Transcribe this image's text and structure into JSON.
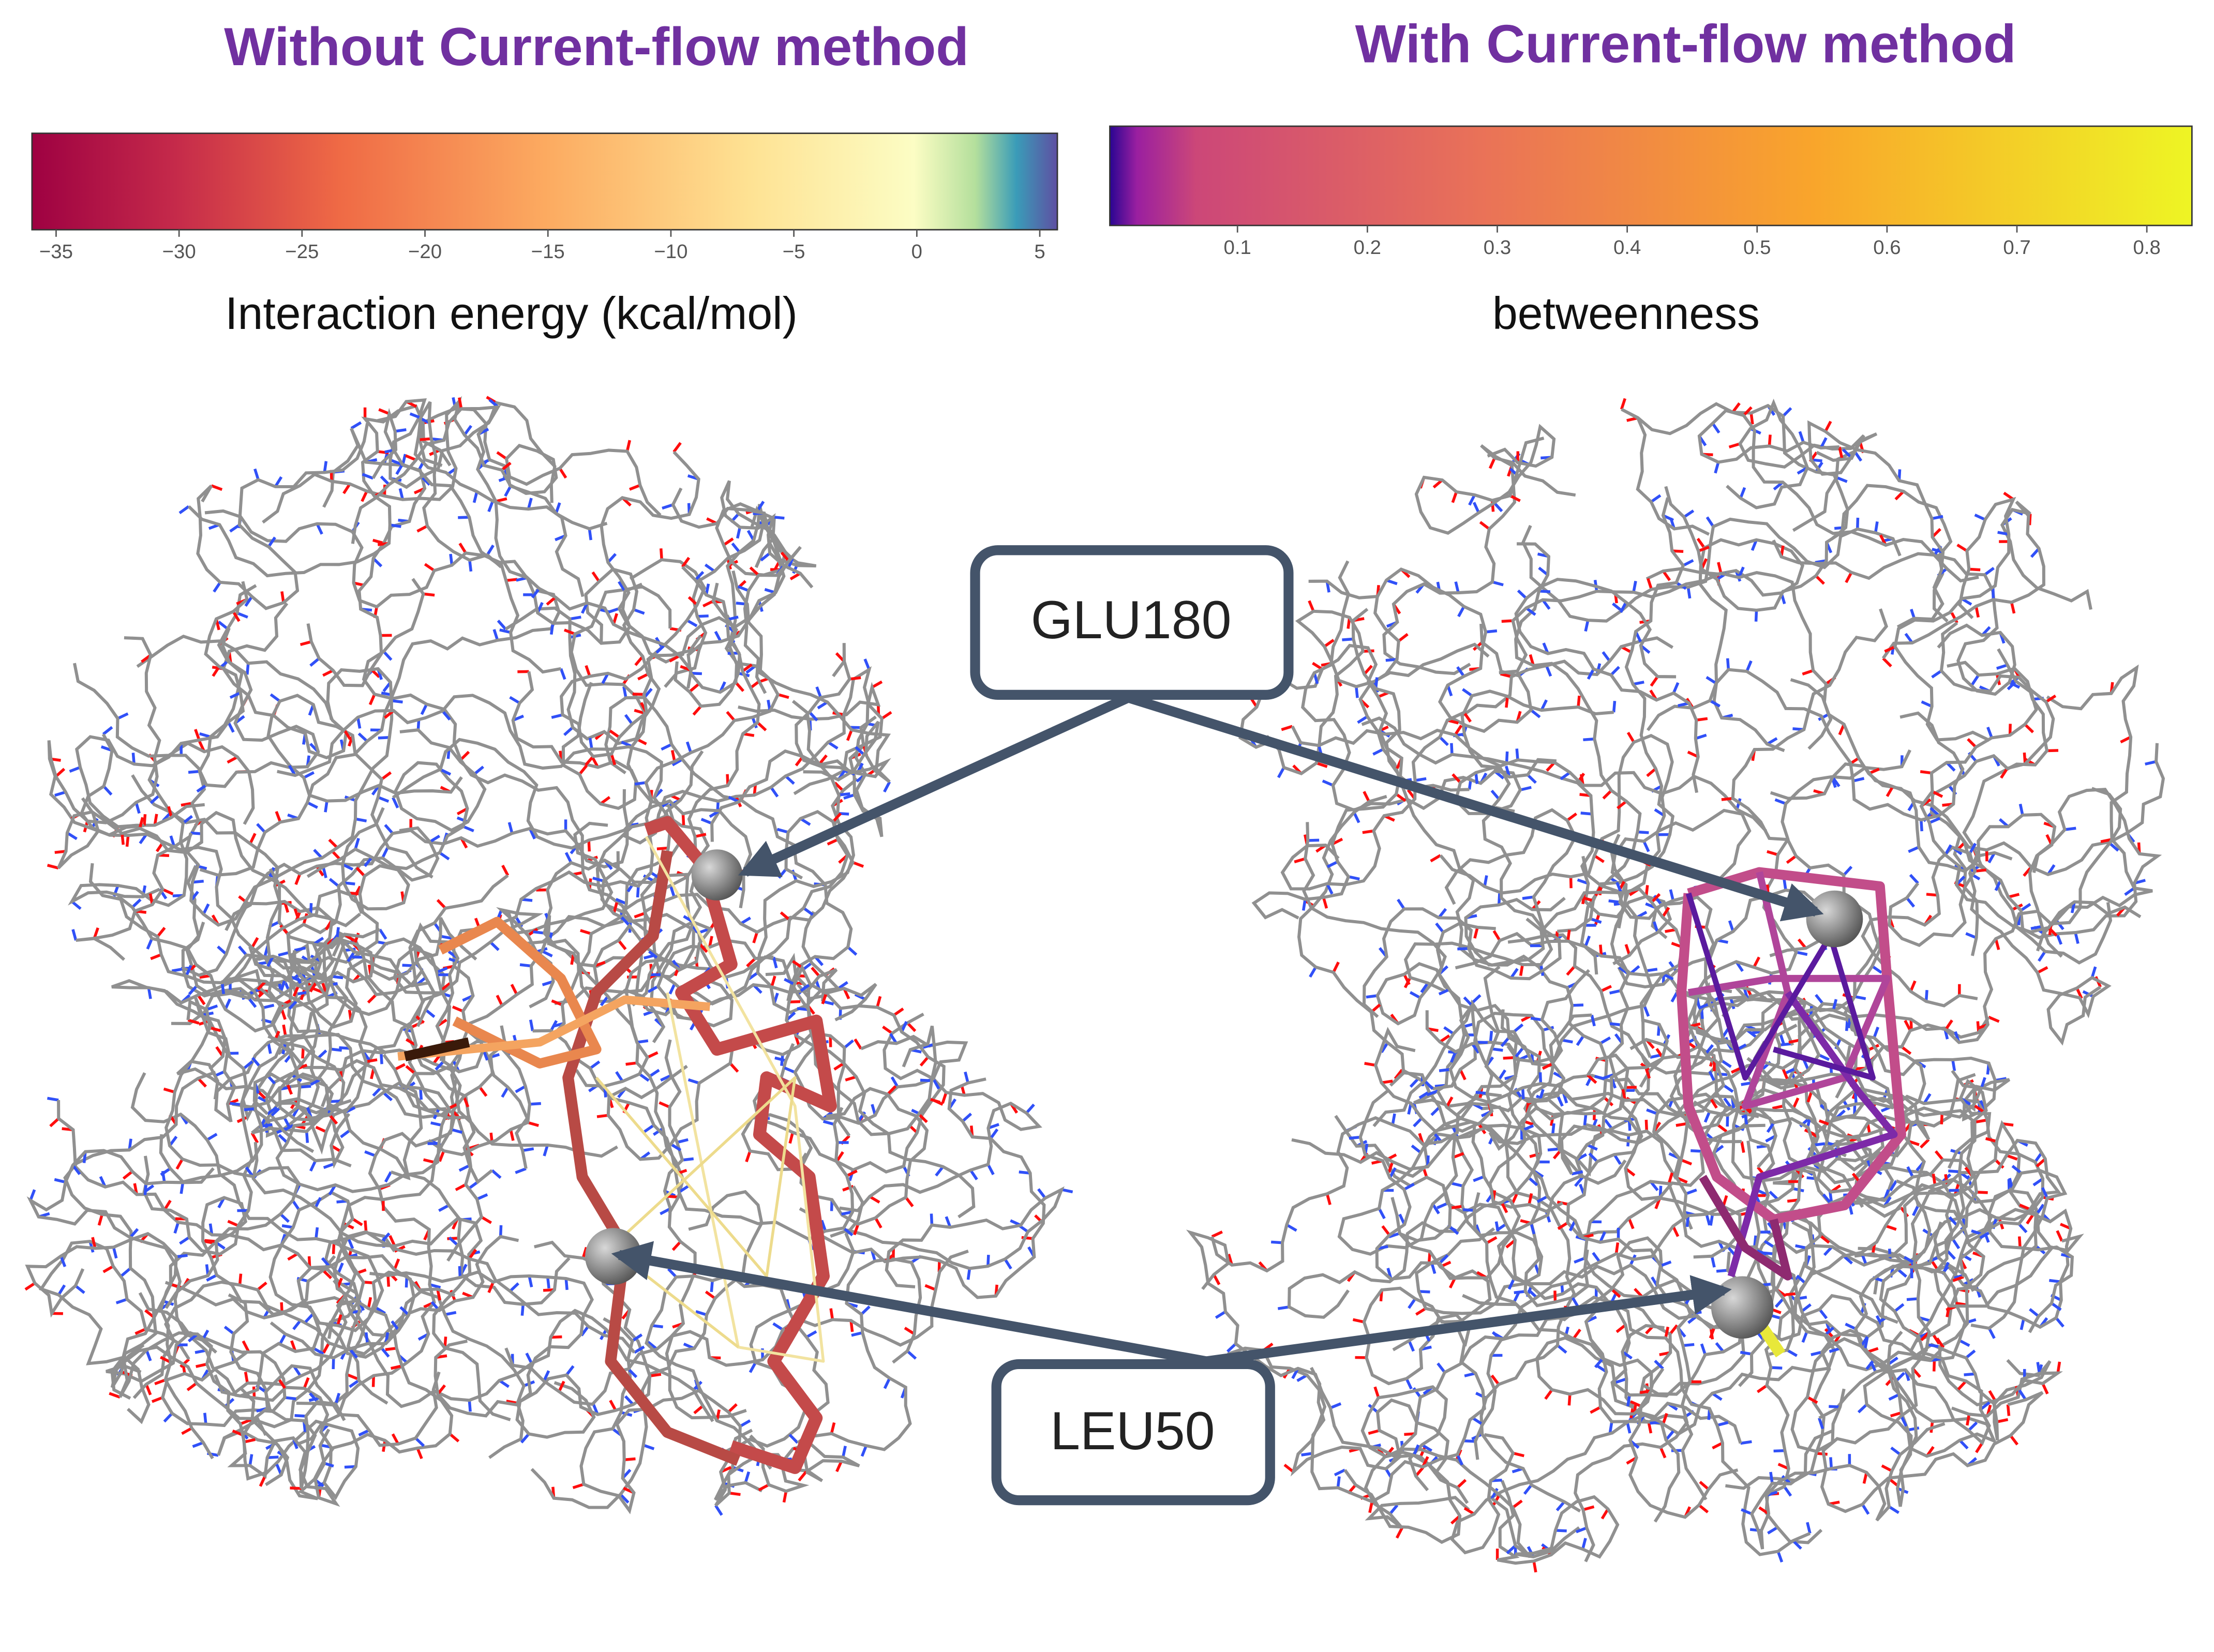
{
  "left_panel": {
    "title": "Without Current-flow method",
    "colorbar": {
      "ticks": [
        "−35",
        "−30",
        "−25",
        "−20",
        "−15",
        "−10",
        "−5",
        "0",
        "5"
      ],
      "label": "Interaction energy (kcal/mol)"
    }
  },
  "right_panel": {
    "title": "With Current-flow method",
    "colorbar": {
      "ticks": [
        "0.1",
        "0.2",
        "0.3",
        "0.4",
        "0.5",
        "0.6",
        "0.7",
        "0.8"
      ],
      "label": "betweenness"
    }
  },
  "callouts": [
    {
      "label": "GLU180"
    },
    {
      "label": "LEU50"
    }
  ]
}
